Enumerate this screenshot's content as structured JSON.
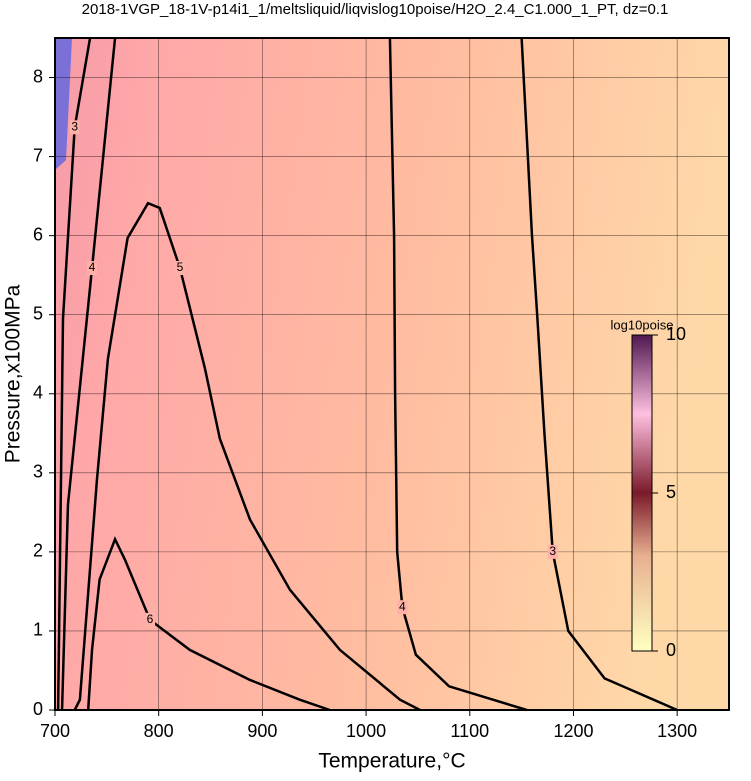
{
  "chart_data": {
    "type": "contour",
    "title": "2018-1VGP_18-1V-p14i1_1/meltsliquid/liqvislog10poise/H2O_2.4_C1.000_1_PT, dz=0.1",
    "x_label": "Temperature,°C",
    "y_label": "Pressure,x100MPa",
    "xlim": [
      700,
      1350
    ],
    "ylim": [
      0,
      8.5
    ],
    "xticks": [
      700,
      800,
      900,
      1000,
      1100,
      1200,
      1300
    ],
    "yticks": [
      0,
      1,
      2,
      3,
      4,
      5,
      6,
      7,
      8
    ],
    "grid": true,
    "line_color": "#000000",
    "contours": [
      {
        "level": 3,
        "x": [
          1150,
          1160,
          1165,
          1172,
          1180,
          1195,
          1230,
          1300
        ],
        "y": [
          8.5,
          6,
          5,
          3.5,
          2,
          1,
          0.4,
          0
        ]
      },
      {
        "level": 4,
        "x": [
          1023,
          1027,
          1028,
          1030,
          1035,
          1048,
          1080,
          1155
        ],
        "y": [
          8.5,
          6,
          4,
          2,
          1.3,
          0.7,
          0.3,
          0
        ]
      },
      {
        "level": 5,
        "x": [
          719,
          724,
          740.5,
          751,
          770,
          789.7,
          801,
          820.5,
          844.6,
          859,
          888,
          926.6,
          974.8,
          1032.7,
          1052
        ],
        "y": [
          0,
          0.13,
          2.92,
          4.44,
          5.97,
          6.41,
          6.35,
          5.59,
          4.32,
          3.43,
          2.41,
          1.52,
          0.76,
          0.13,
          0
        ]
      },
      {
        "level": 6,
        "x": [
          732,
          735.7,
          743,
          757.9,
          767.5,
          791.6,
          830,
          888,
          936,
          965
        ],
        "y": [
          0,
          0.76,
          1.65,
          2.16,
          1.9,
          1.14,
          0.76,
          0.38,
          0.13,
          0
        ]
      },
      {
        "level": 4,
        "x": [
          706.8,
          712.5,
          735.7,
          757.9
        ],
        "y": [
          0,
          2.6,
          5.59,
          8.5
        ]
      },
      {
        "level": 3,
        "x": [
          703,
          707.7,
          719,
          733.8
        ],
        "y": [
          0,
          4.95,
          7.37,
          8.5
        ]
      }
    ],
    "colorbar": {
      "label": "log10poise",
      "lim": [
        0,
        10
      ],
      "ticks": [
        0,
        5,
        10
      ]
    }
  }
}
